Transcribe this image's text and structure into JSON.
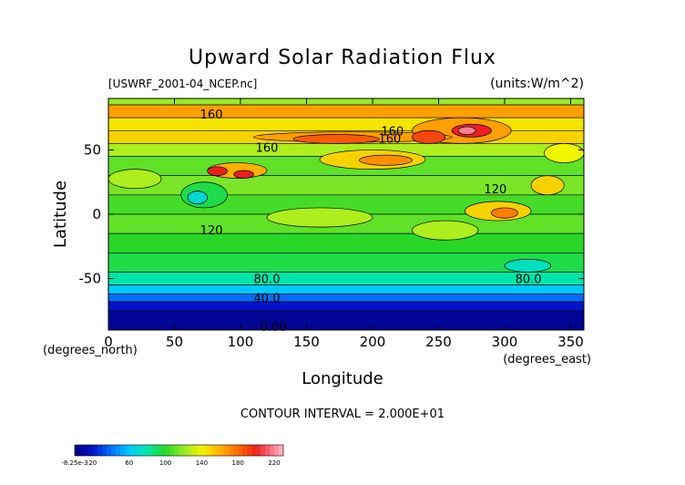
{
  "chart_data": {
    "type": "heatmap",
    "title": "Upward Solar Radiation Flux",
    "file_label": "[USWRF_2001-04_NCEP.nc]",
    "units_label": "(units:W/m^2)",
    "xlabel": "Longitude",
    "ylabel": "Latitude",
    "x_unit_label": "(degrees_east)",
    "y_unit_label": "(degrees_north)",
    "xlim": [
      0,
      360
    ],
    "ylim": [
      -90,
      90
    ],
    "x_ticks": [
      0,
      50,
      100,
      150,
      200,
      250,
      300,
      350
    ],
    "y_ticks": [
      -50,
      0,
      50
    ],
    "contour_interval_text": "CONTOUR INTERVAL = 2.000E+01",
    "contour_labels": [
      {
        "text": "160",
        "x": 78,
        "y": 78
      },
      {
        "text": "160",
        "x": 215,
        "y": 65
      },
      {
        "text": "160",
        "x": 213,
        "y": 59
      },
      {
        "text": "160",
        "x": 120,
        "y": 52
      },
      {
        "text": "120",
        "x": 293,
        "y": 20
      },
      {
        "text": "120",
        "x": 78,
        "y": -12
      },
      {
        "text": "80.0",
        "x": 120,
        "y": -50
      },
      {
        "text": "80.0",
        "x": 318,
        "y": -50
      },
      {
        "text": "40.0",
        "x": 120,
        "y": -65
      },
      {
        "text": "0.00",
        "x": 125,
        "y": -87
      }
    ],
    "lat_bands": [
      {
        "lat": [
          85,
          90
        ],
        "value": 120
      },
      {
        "lat": [
          75,
          85
        ],
        "value": 165
      },
      {
        "lat": [
          65,
          75
        ],
        "value": 145
      },
      {
        "lat": [
          55,
          65
        ],
        "value": 150
      },
      {
        "lat": [
          45,
          55
        ],
        "value": 125
      },
      {
        "lat": [
          30,
          45
        ],
        "value": 110
      },
      {
        "lat": [
          15,
          30
        ],
        "value": 115
      },
      {
        "lat": [
          0,
          15
        ],
        "value": 105
      },
      {
        "lat": [
          -15,
          0
        ],
        "value": 110
      },
      {
        "lat": [
          -30,
          -15
        ],
        "value": 100
      },
      {
        "lat": [
          -45,
          -30
        ],
        "value": 95
      },
      {
        "lat": [
          -55,
          -45
        ],
        "value": 80
      },
      {
        "lat": [
          -62,
          -55
        ],
        "value": 60
      },
      {
        "lat": [
          -68,
          -62
        ],
        "value": 40
      },
      {
        "lat": [
          -75,
          -68
        ],
        "value": 20
      },
      {
        "lat": [
          -90,
          -75
        ],
        "value": 5
      }
    ],
    "patches": [
      {
        "lon": [
          230,
          305
        ],
        "lat": [
          55,
          75
        ],
        "value": 165
      },
      {
        "lon": [
          260,
          290
        ],
        "lat": [
          60,
          70
        ],
        "value": 200
      },
      {
        "lon": [
          265,
          278
        ],
        "lat": [
          62,
          68
        ],
        "value": 220
      },
      {
        "lon": [
          110,
          260
        ],
        "lat": [
          56,
          64
        ],
        "value": 165
      },
      {
        "lon": [
          140,
          205
        ],
        "lat": [
          55,
          62
        ],
        "value": 185
      },
      {
        "lon": [
          230,
          255
        ],
        "lat": [
          55,
          65
        ],
        "value": 190
      },
      {
        "lon": [
          75,
          120
        ],
        "lat": [
          28,
          40
        ],
        "value": 160
      },
      {
        "lon": [
          75,
          90
        ],
        "lat": [
          30,
          37
        ],
        "value": 200
      },
      {
        "lon": [
          95,
          110
        ],
        "lat": [
          28,
          34
        ],
        "value": 200
      },
      {
        "lon": [
          160,
          240
        ],
        "lat": [
          35,
          50
        ],
        "value": 150
      },
      {
        "lon": [
          190,
          230
        ],
        "lat": [
          38,
          46
        ],
        "value": 170
      },
      {
        "lon": [
          270,
          320
        ],
        "lat": [
          -5,
          10
        ],
        "value": 150
      },
      {
        "lon": [
          290,
          310
        ],
        "lat": [
          -3,
          5
        ],
        "value": 175
      },
      {
        "lon": [
          320,
          345
        ],
        "lat": [
          15,
          30
        ],
        "value": 150
      },
      {
        "lon": [
          55,
          90
        ],
        "lat": [
          5,
          25
        ],
        "value": 95
      },
      {
        "lon": [
          60,
          75
        ],
        "lat": [
          8,
          18
        ],
        "value": 70
      },
      {
        "lon": [
          120,
          200
        ],
        "lat": [
          -10,
          5
        ],
        "value": 125
      },
      {
        "lon": [
          230,
          280
        ],
        "lat": [
          -20,
          -5
        ],
        "value": 125
      },
      {
        "lon": [
          0,
          40
        ],
        "lat": [
          20,
          35
        ],
        "value": 125
      },
      {
        "lon": [
          300,
          335
        ],
        "lat": [
          -45,
          -35
        ],
        "value": 75
      },
      {
        "lon": [
          330,
          360
        ],
        "lat": [
          40,
          55
        ],
        "value": 140
      }
    ],
    "colorbar": {
      "tick_labels": [
        "-8.25e-3",
        "20",
        "60",
        "100",
        "140",
        "180",
        "220"
      ],
      "tick_values": [
        0,
        20,
        60,
        100,
        140,
        180,
        220
      ],
      "range": [
        0,
        230
      ]
    }
  }
}
